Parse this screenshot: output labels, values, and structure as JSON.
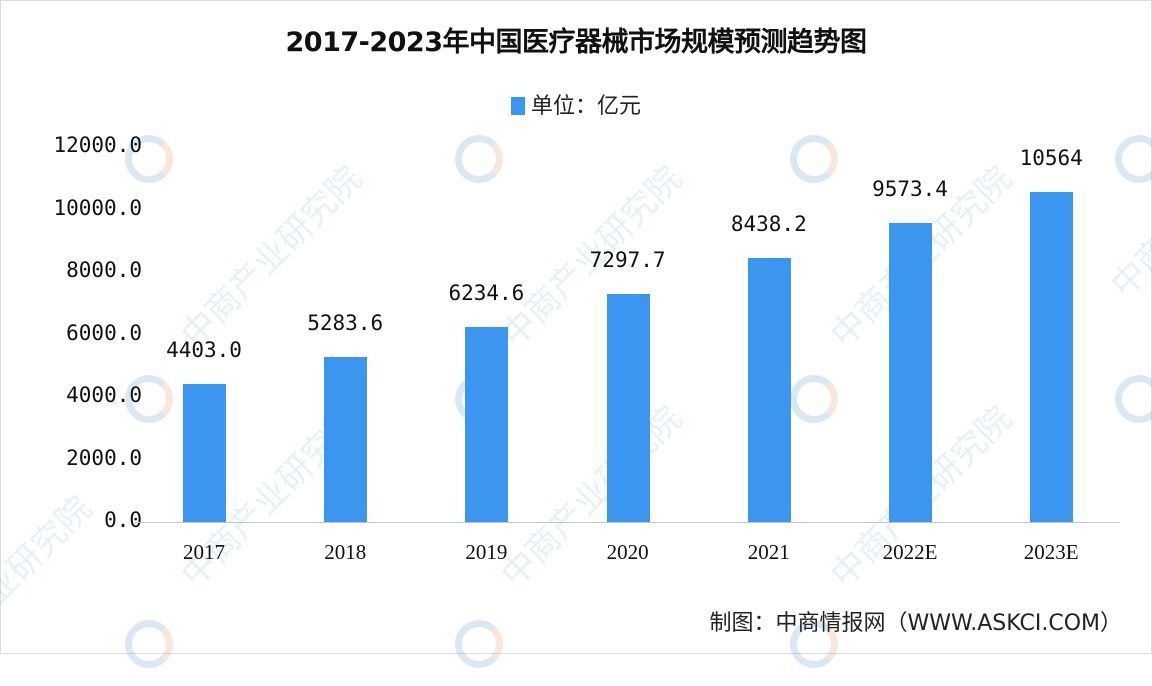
{
  "title": "2017-2023年中国医疗器械市场规模预测趋势图",
  "legend": {
    "label": "单位：亿元",
    "color": "#3a96ee"
  },
  "source": "制图：中商情报网（WWW.ASKCI.COM）",
  "watermark": "中商产业研究院",
  "chart_data": {
    "type": "bar",
    "title": "2017-2023年中国医疗器械市场规模预测趋势图",
    "xlabel": "",
    "ylabel": "单位：亿元",
    "ylim": [
      0,
      12000
    ],
    "yticks": [
      "0.0",
      "2000.0",
      "4000.0",
      "6000.0",
      "8000.0",
      "10000.0",
      "12000.0"
    ],
    "categories": [
      "2017",
      "2018",
      "2019",
      "2020",
      "2021",
      "2022E",
      "2023E"
    ],
    "values": [
      4403.0,
      5283.6,
      6234.6,
      7297.7,
      8438.2,
      9573.4,
      10564
    ],
    "value_labels": [
      "4403.0",
      "5283.6",
      "6234.6",
      "7297.7",
      "8438.2",
      "9573.4",
      "10564"
    ],
    "series": [
      {
        "name": "单位：亿元",
        "values": [
          4403.0,
          5283.6,
          6234.6,
          7297.7,
          8438.2,
          9573.4,
          10564
        ],
        "color": "#3a96ee"
      }
    ],
    "grid": false,
    "legend_position": "top"
  }
}
